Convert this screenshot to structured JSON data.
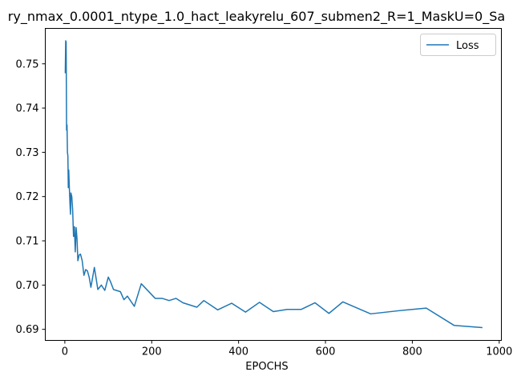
{
  "colors": {
    "series_line": "#1f77b4",
    "axes": "#000000",
    "legend_border": "#cccccc"
  },
  "chart_data": {
    "type": "line",
    "title": "ry_nmax_0.0001_ntype_1.0_hact_leakyrelu_607_submen2_R=1_MaskU=0_Sa",
    "xlabel": "EPOCHS",
    "ylabel": "",
    "xlim": [
      -45,
      1005
    ],
    "ylim": [
      0.6875,
      0.758
    ],
    "xticks": [
      0,
      200,
      400,
      600,
      800,
      1000
    ],
    "xtick_labels": [
      "0",
      "200",
      "400",
      "600",
      "800",
      "1000"
    ],
    "yticks": [
      0.69,
      0.7,
      0.71,
      0.72,
      0.73,
      0.74,
      0.75
    ],
    "ytick_labels": [
      "0.69",
      "0.70",
      "0.71",
      "0.72",
      "0.73",
      "0.74",
      "0.75"
    ],
    "grid": false,
    "legend_position": "top-right",
    "series": [
      {
        "name": "Loss",
        "x": [
          1,
          2,
          3,
          4,
          5,
          6,
          7,
          8,
          9,
          10,
          11,
          12,
          13,
          14,
          16,
          18,
          20,
          22,
          24,
          26,
          28,
          30,
          33,
          36,
          40,
          44,
          48,
          52,
          56,
          60,
          68,
          76,
          84,
          92,
          100,
          105,
          112,
          128,
          136,
          144,
          160,
          176,
          208,
          224,
          240,
          256,
          272,
          288,
          304,
          320,
          352,
          384,
          416,
          448,
          480,
          512,
          544,
          576,
          608,
          640,
          704,
          768,
          832,
          896,
          960
        ],
        "y": [
          0.748,
          0.7552,
          0.7549,
          0.735,
          0.7362,
          0.73,
          0.7292,
          0.722,
          0.726,
          0.723,
          0.7205,
          0.718,
          0.716,
          0.7208,
          0.72,
          0.717,
          0.711,
          0.7132,
          0.7075,
          0.713,
          0.7105,
          0.7055,
          0.7068,
          0.707,
          0.7055,
          0.7022,
          0.7035,
          0.7032,
          0.7018,
          0.6995,
          0.704,
          0.699,
          0.7,
          0.6988,
          0.7018,
          0.7008,
          0.699,
          0.6985,
          0.6967,
          0.6975,
          0.6952,
          0.7003,
          0.697,
          0.697,
          0.6965,
          0.697,
          0.696,
          0.6955,
          0.695,
          0.6965,
          0.6944,
          0.6959,
          0.6939,
          0.6961,
          0.694,
          0.6945,
          0.6945,
          0.696,
          0.6936,
          0.6962,
          0.6935,
          0.6942,
          0.6948,
          0.6909,
          0.6904
        ]
      }
    ]
  }
}
